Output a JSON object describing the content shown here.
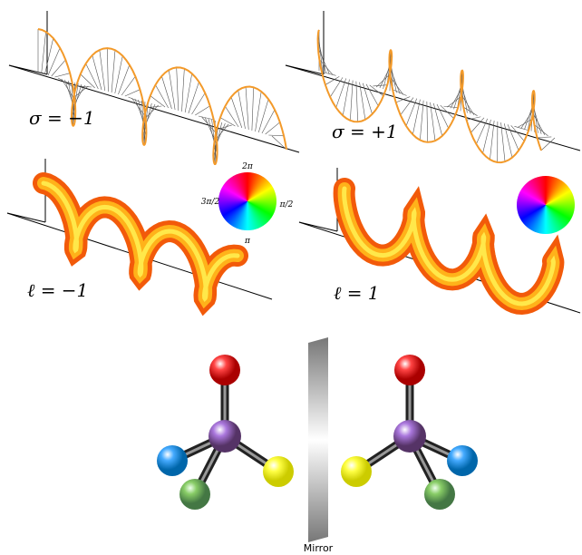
{
  "panels": [
    {
      "label": "σ = −1"
    },
    {
      "label": "σ = +1"
    },
    {
      "label": "ℓ = −1"
    },
    {
      "label": "ℓ = 1"
    }
  ],
  "phase_wheel": {
    "top": "2π",
    "left": "3π/2",
    "right": "π/2",
    "bottom": "π"
  },
  "mirror": {
    "label": "Mirror"
  }
}
